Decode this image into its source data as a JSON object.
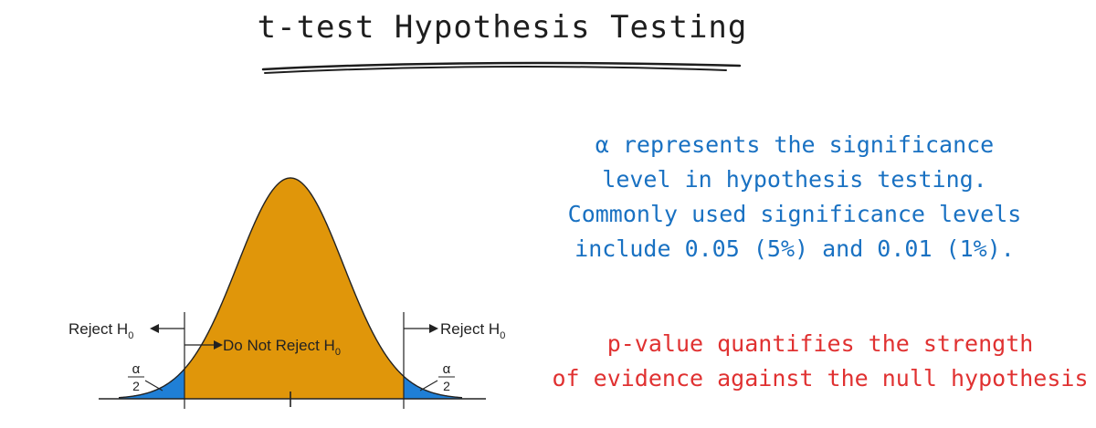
{
  "title": "t-test Hypothesis Testing",
  "alpha_note": {
    "lines": [
      "α represents the significance",
      "level in hypothesis testing.",
      "Commonly used significance levels",
      "include 0.05 (5%) and 0.01 (1%)."
    ]
  },
  "p_value_note": {
    "lines": [
      "p-value quantifies the strength",
      "of evidence against the null hypothesis"
    ]
  },
  "chart_data": {
    "type": "area",
    "distribution": "bell curve with two shaded rejection tails",
    "labels": {
      "reject_left": "Reject H",
      "reject_right": "Reject H",
      "do_not_reject": "Do Not Reject H",
      "subscript": "0",
      "alpha_numerator": "α",
      "alpha_denominator": "2"
    },
    "colors": {
      "center_region": "#E0960A",
      "tail_regions": "#1F7FD6",
      "outline": "#222222"
    }
  },
  "colors": {
    "title": "#1e1e1e",
    "alpha_note": "#1971c2",
    "p_value_note": "#e03131"
  }
}
